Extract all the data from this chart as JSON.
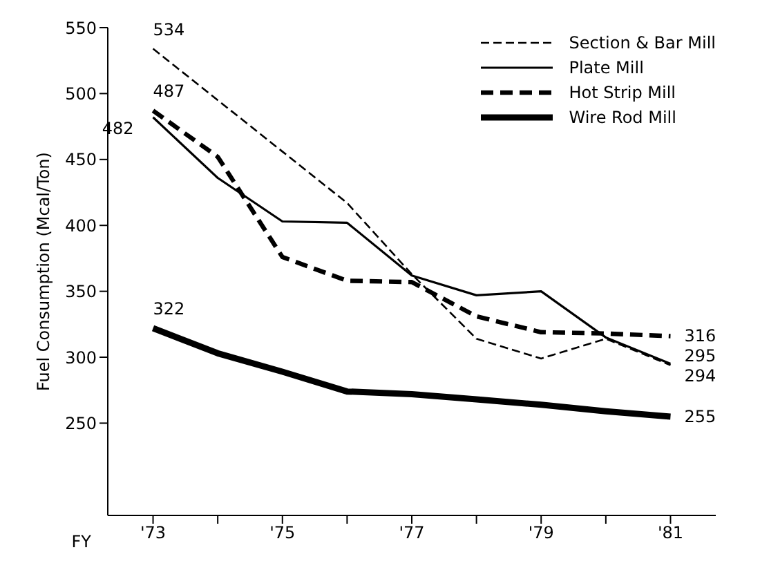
{
  "chart_data": {
    "type": "line",
    "xlabel": "FY",
    "ylabel": "Fuel Consumption (Mcal/Ton)",
    "x": [
      73,
      74,
      75,
      76,
      77,
      78,
      79,
      80,
      81
    ],
    "series": [
      {
        "name": "Section & Bar Mill",
        "color": "#000000",
        "line_style": "dashed",
        "values": [
          534,
          495,
          456,
          417,
          363,
          314,
          299,
          314,
          294
        ],
        "value_labels": [
          "534",
          null,
          null,
          null,
          null,
          null,
          null,
          null,
          "294"
        ]
      },
      {
        "name": "Plate Mill",
        "color": "#000000",
        "line_style": "solid",
        "values": [
          482,
          436,
          403,
          402,
          362,
          347,
          350,
          315,
          295
        ],
        "value_labels": [
          "482",
          null,
          null,
          null,
          null,
          null,
          null,
          null,
          "295"
        ]
      },
      {
        "name": "Hot Strip Mill",
        "color": "#000000",
        "line_style": "dashed",
        "values": [
          487,
          452,
          376,
          358,
          357,
          331,
          319,
          318,
          316
        ],
        "value_labels": [
          "487",
          null,
          null,
          null,
          null,
          null,
          null,
          null,
          "316"
        ]
      },
      {
        "name": "Wire Rod Mill",
        "color": "#000000",
        "line_style": "solid",
        "values": [
          322,
          303,
          289,
          274,
          272,
          268,
          264,
          259,
          255
        ],
        "value_labels": [
          "322",
          null,
          null,
          null,
          null,
          null,
          null,
          null,
          "255"
        ]
      }
    ],
    "xlim": [
      72.3,
      81.7
    ],
    "xticks": [
      {
        "value": 73,
        "label": "'73"
      },
      {
        "value": 74,
        "label": null
      },
      {
        "value": 75,
        "label": "'75"
      },
      {
        "value": 76,
        "label": null
      },
      {
        "value": 77,
        "label": "'77"
      },
      {
        "value": 78,
        "label": null
      },
      {
        "value": 79,
        "label": "'79"
      },
      {
        "value": 80,
        "label": null
      },
      {
        "value": 81,
        "label": "'81"
      }
    ],
    "ylim": [
      180,
      550
    ],
    "yticks": [
      250,
      300,
      350,
      400,
      450,
      500,
      550
    ],
    "grid": false,
    "legend": "top right",
    "marker": "none"
  }
}
